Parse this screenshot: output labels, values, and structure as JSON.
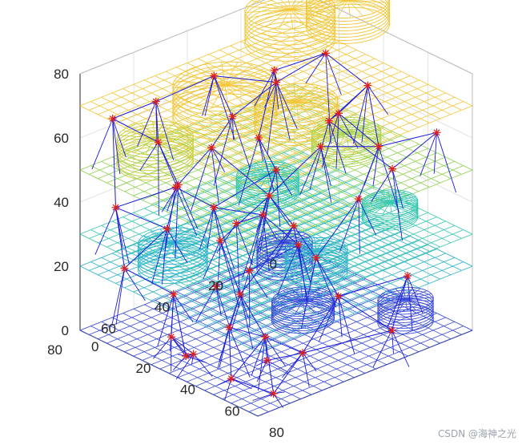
{
  "chart_data": {
    "type": "3d-wireframe-scatter",
    "title": "",
    "axes": {
      "x": {
        "range": [
          0,
          80
        ],
        "ticks": [
          0,
          20,
          40,
          60,
          80
        ],
        "label": ""
      },
      "y": {
        "range": [
          0,
          80
        ],
        "ticks": [
          0,
          20,
          40,
          60,
          80
        ],
        "label": ""
      },
      "z": {
        "range": [
          0,
          80
        ],
        "ticks": [
          0,
          20,
          40,
          60,
          80
        ],
        "label": ""
      }
    },
    "grid": true,
    "layers": [
      {
        "z": 0,
        "color": "#3a4bd8"
      },
      {
        "z": 20,
        "color": "#2db3c9"
      },
      {
        "z": 30,
        "color": "#36c7b0"
      },
      {
        "z": 50,
        "color": "#8fd14f"
      },
      {
        "z": 70,
        "color": "#f2c637"
      }
    ],
    "cylinders": [
      {
        "x": 10,
        "y": 12,
        "z0": 0,
        "z1": 8,
        "r": 8,
        "color": "#3a4bd8"
      },
      {
        "x": 40,
        "y": 30,
        "z0": 0,
        "z1": 6,
        "r": 9,
        "color": "#3a4bd8"
      },
      {
        "x": 62,
        "y": 10,
        "z0": 0,
        "z1": 7,
        "r": 8,
        "color": "#3a4bd8"
      },
      {
        "x": 20,
        "y": 62,
        "z0": 20,
        "z1": 28,
        "r": 10,
        "color": "#2db3c9"
      },
      {
        "x": 52,
        "y": 35,
        "z0": 20,
        "z1": 27,
        "r": 9,
        "color": "#2db3c9"
      },
      {
        "x": 18,
        "y": 25,
        "z0": 30,
        "z1": 36,
        "r": 9,
        "color": "#36c7b0"
      },
      {
        "x": 55,
        "y": 10,
        "z0": 30,
        "z1": 35,
        "r": 8,
        "color": "#36c7b0"
      },
      {
        "x": 12,
        "y": 62,
        "z0": 50,
        "z1": 58,
        "r": 11,
        "color": "#c9cf3a"
      },
      {
        "x": 45,
        "y": 18,
        "z0": 50,
        "z1": 56,
        "r": 10,
        "color": "#a8d64a"
      },
      {
        "x": 10,
        "y": 10,
        "z0": 70,
        "z1": 80,
        "r": 13,
        "color": "#f2c637"
      },
      {
        "x": 35,
        "y": 55,
        "z0": 70,
        "z1": 80,
        "r": 15,
        "color": "#f2c637"
      },
      {
        "x": 30,
        "y": 5,
        "z0": 80,
        "z1": 88,
        "r": 12,
        "color": "#f2c637"
      },
      {
        "x": 55,
        "y": 45,
        "z0": 70,
        "z1": 78,
        "r": 12,
        "color": "#f2c637"
      }
    ],
    "points": [
      [
        5,
        72,
        65
      ],
      [
        10,
        60,
        68
      ],
      [
        12,
        40,
        70
      ],
      [
        15,
        20,
        66
      ],
      [
        20,
        5,
        68
      ],
      [
        28,
        30,
        70
      ],
      [
        30,
        48,
        66
      ],
      [
        35,
        60,
        62
      ],
      [
        45,
        10,
        68
      ],
      [
        50,
        25,
        66
      ],
      [
        60,
        40,
        64
      ],
      [
        70,
        5,
        60
      ],
      [
        62,
        20,
        58
      ],
      [
        72,
        60,
        50
      ],
      [
        5,
        55,
        52
      ],
      [
        25,
        65,
        48
      ],
      [
        20,
        30,
        50
      ],
      [
        40,
        40,
        50
      ],
      [
        55,
        55,
        52
      ],
      [
        65,
        30,
        46
      ],
      [
        10,
        75,
        40
      ],
      [
        30,
        55,
        40
      ],
      [
        45,
        65,
        38
      ],
      [
        50,
        5,
        42
      ],
      [
        8,
        50,
        38
      ],
      [
        70,
        50,
        36
      ],
      [
        60,
        70,
        28
      ],
      [
        40,
        50,
        22
      ],
      [
        20,
        80,
        26
      ],
      [
        75,
        20,
        22
      ],
      [
        68,
        40,
        20
      ],
      [
        55,
        70,
        16
      ],
      [
        80,
        30,
        10
      ],
      [
        70,
        55,
        8
      ],
      [
        62,
        75,
        4
      ],
      [
        45,
        75,
        6
      ],
      [
        75,
        70,
        2
      ],
      [
        30,
        70,
        18
      ],
      [
        15,
        60,
        30
      ],
      [
        50,
        40,
        30
      ],
      [
        35,
        75,
        8
      ],
      [
        38,
        72,
        2
      ],
      [
        25,
        50,
        12
      ],
      [
        10,
        30,
        20
      ],
      [
        60,
        60,
        4
      ],
      [
        42,
        22,
        60
      ],
      [
        34,
        40,
        34
      ],
      [
        64,
        64,
        14
      ]
    ]
  },
  "watermark": "CSDN @海神之光"
}
